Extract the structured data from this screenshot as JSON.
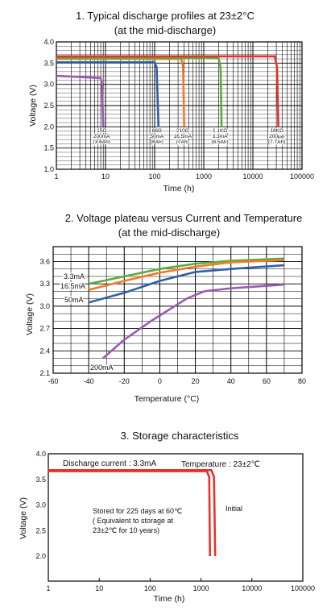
{
  "chart_data": [
    {
      "type": "line",
      "title": "1. Typical discharge profiles at 23±2°C",
      "subtitle": "(at  the mid-discharge)",
      "xlabel": "Time (h)",
      "ylabel": "Voltage (V)",
      "xscale": "log",
      "xlim": [
        1,
        100000
      ],
      "ylim": [
        1.0,
        4.0
      ],
      "xticks": [
        "1",
        "10",
        "100",
        "1000",
        "10000",
        "100000"
      ],
      "yticks": [
        "1.0",
        "1.5",
        "2.0",
        "2.5",
        "3.0",
        "3.5",
        "4.0"
      ],
      "grid": true,
      "series": [
        {
          "color": "#9b59b6",
          "label_lines": [
            "15Ω",
            "200mA",
            "(3.6Ah)"
          ],
          "points": [
            [
              1,
              3.2
            ],
            [
              8,
              3.15
            ],
            [
              8.5,
              3.0
            ],
            [
              9,
              2.0
            ]
          ]
        },
        {
          "color": "#2f5fa8",
          "label_lines": [
            "66Ω",
            "50mA",
            "(6Ah)"
          ],
          "points": [
            [
              1,
              3.52
            ],
            [
              100,
              3.52
            ],
            [
              110,
              3.4
            ],
            [
              120,
              2.0
            ]
          ]
        },
        {
          "color": "#f07a2a",
          "label_lines": [
            "210Ω",
            "16.5mA",
            "(7Ah)"
          ],
          "points": [
            [
              1,
              3.6
            ],
            [
              350,
              3.6
            ],
            [
              380,
              3.4
            ],
            [
              400,
              2.0
            ]
          ]
        },
        {
          "color": "#5cab3c",
          "label_lines": [
            "1.1KΩ",
            "3.3mA",
            "(8.5Ah)"
          ],
          "points": [
            [
              1,
              3.62
            ],
            [
              2000,
              3.62
            ],
            [
              2200,
              3.4
            ],
            [
              2300,
              2.0
            ]
          ]
        },
        {
          "color": "#e6322a",
          "label_lines": [
            "18KΩ",
            "200μA",
            "(7.7Ah)"
          ],
          "points": [
            [
              1,
              3.66
            ],
            [
              28000,
              3.66
            ],
            [
              31000,
              3.4
            ],
            [
              33000,
              2.0
            ]
          ]
        }
      ]
    },
    {
      "type": "line",
      "title": "2. Voltage plateau versus Current and Temperature",
      "subtitle": "(at the mid-discharge)",
      "xlabel": "Temperature (°C)",
      "ylabel": "Voltage (V)",
      "xlim": [
        -60,
        80
      ],
      "ylim": [
        2.1,
        3.8
      ],
      "xticks": [
        "-60",
        "-40",
        "-20",
        "0",
        "20",
        "40",
        "60",
        "80"
      ],
      "yticks": [
        "2.1",
        "2.4",
        "2.7",
        "3.0",
        "3.3",
        "3.6"
      ],
      "grid": true,
      "series": [
        {
          "name": "3.3mA",
          "color": "#5cab3c",
          "points": [
            [
              -40,
              3.3
            ],
            [
              -20,
              3.4
            ],
            [
              0,
              3.5
            ],
            [
              20,
              3.57
            ],
            [
              40,
              3.61
            ],
            [
              70,
              3.64
            ]
          ]
        },
        {
          "name": "16.5mA",
          "color": "#f07a2a",
          "points": [
            [
              -40,
              3.22
            ],
            [
              -20,
              3.34
            ],
            [
              0,
              3.45
            ],
            [
              20,
              3.53
            ],
            [
              40,
              3.59
            ],
            [
              70,
              3.62
            ]
          ]
        },
        {
          "name": "50mA",
          "color": "#2f5fa8",
          "points": [
            [
              -40,
              3.05
            ],
            [
              -20,
              3.18
            ],
            [
              0,
              3.34
            ],
            [
              20,
              3.46
            ],
            [
              40,
              3.5
            ],
            [
              70,
              3.55
            ]
          ]
        },
        {
          "name": "200mA",
          "color": "#9b59b6",
          "points": [
            [
              -32,
              2.3
            ],
            [
              -20,
              2.55
            ],
            [
              -5,
              2.8
            ],
            [
              5,
              2.95
            ],
            [
              15,
              3.1
            ],
            [
              25,
              3.2
            ],
            [
              40,
              3.24
            ],
            [
              70,
              3.29
            ]
          ]
        }
      ]
    },
    {
      "type": "line",
      "title": "3. Storage characteristics",
      "xlabel": "Time (h)",
      "ylabel": "Voltage (V)",
      "xscale": "log",
      "xlim": [
        1,
        100000
      ],
      "ylim": [
        1.7,
        4.0
      ],
      "xticks": [
        "1",
        "10",
        "100",
        "1000",
        "10000",
        "100000"
      ],
      "yticks": [
        "2.0",
        "2.5",
        "3.0",
        "3.5",
        "4.0"
      ],
      "grid": false,
      "annotations": [
        "Discharge current : 3.3mA",
        "Temperature : 23±2℃",
        "Stored for 225 days at 60℃",
        "( Equivalent to storage at",
        "23±2℃ for 10 years)",
        "Initial"
      ],
      "series": [
        {
          "color": "#e6322a",
          "points": [
            [
              1,
              3.66
            ],
            [
              1300,
              3.66
            ],
            [
              1450,
              3.55
            ],
            [
              1500,
              2.0
            ]
          ]
        },
        {
          "color": "#e6322a",
          "points": [
            [
              1,
              3.68
            ],
            [
              1600,
              3.68
            ],
            [
              1800,
              3.55
            ],
            [
              1900,
              2.0
            ]
          ]
        }
      ]
    }
  ]
}
